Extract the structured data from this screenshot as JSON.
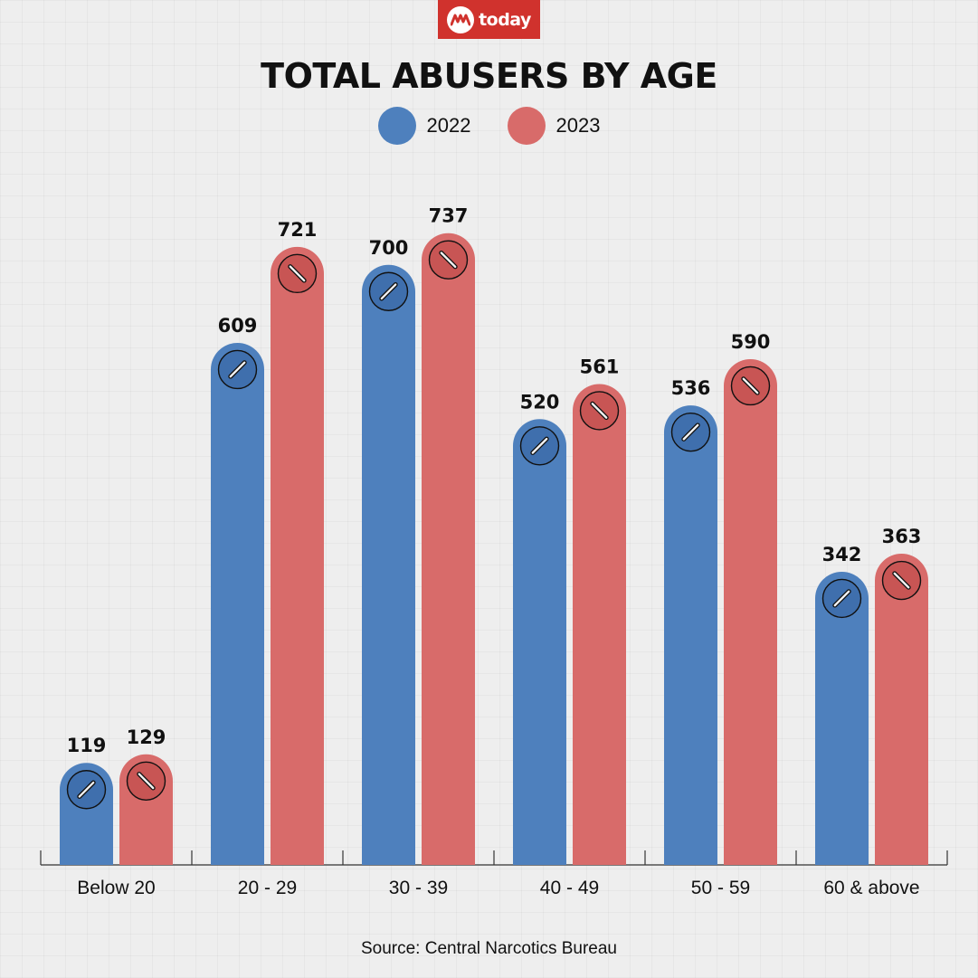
{
  "header": {
    "logo_text": "today",
    "logo_icon": "today-logo-icon",
    "brand_color": "#d0322d"
  },
  "chart_data": {
    "type": "bar",
    "title": "TOTAL ABUSERS BY AGE",
    "categories": [
      "Below 20",
      "20 - 29",
      "30 - 39",
      "40 - 49",
      "50 - 59",
      "60 & above"
    ],
    "series": [
      {
        "name": "2022",
        "color": "#4e80bd",
        "values": [
          119,
          609,
          700,
          520,
          536,
          342
        ]
      },
      {
        "name": "2023",
        "color": "#d86b6a",
        "values": [
          129,
          721,
          737,
          561,
          590,
          363
        ]
      }
    ],
    "xlabel": "",
    "ylabel": "",
    "ylim": [
      0,
      800
    ],
    "grid": false,
    "legend": "top-center",
    "data_labels": true,
    "bar_icon": "pill-icon"
  },
  "footer": {
    "source": "Source: Central Narcotics Bureau"
  }
}
